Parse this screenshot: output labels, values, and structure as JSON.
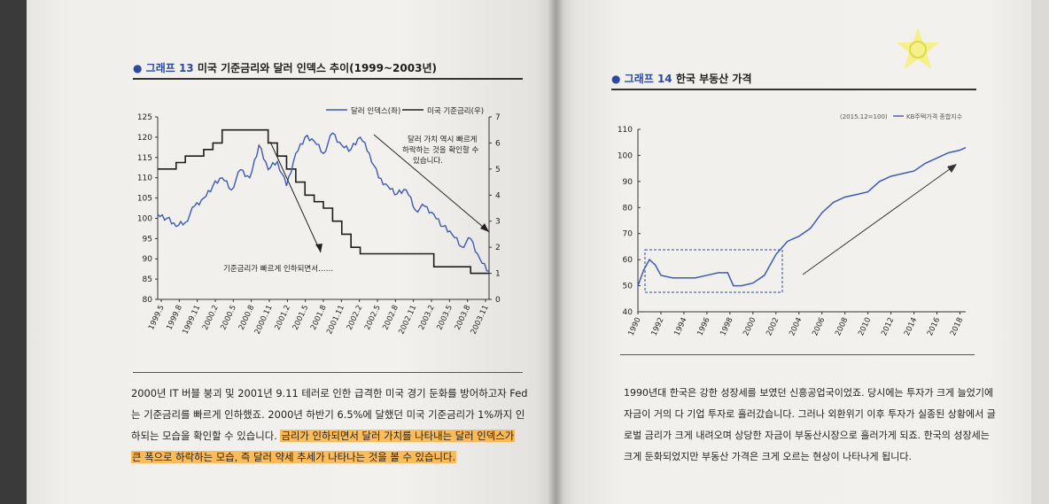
{
  "left": {
    "figure_label": "● 그래프 13",
    "figure_title": "미국 기준금리와 달러 인덱스 추이(1999~2003년)",
    "chart_data": {
      "type": "line",
      "legend": [
        "달러 인덱스(좌)",
        "미국 기준금리(우)"
      ],
      "legend_placement": "top-right",
      "x_ticks": [
        "1999.5",
        "1999.8",
        "1999.11",
        "2000.2",
        "2000.5",
        "2000.8",
        "2000.11",
        "2001.2",
        "2001.5",
        "2001.8",
        "2001.11",
        "2002.2",
        "2002.5",
        "2002.8",
        "2002.11",
        "2003.2",
        "2003.5",
        "2003.8",
        "2003.11"
      ],
      "y_left_ticks": [
        "80",
        "85",
        "90",
        "95",
        "100",
        "105",
        "110",
        "115",
        "120",
        "125"
      ],
      "y_left_range": [
        80,
        125
      ],
      "y_right_ticks": [
        "0",
        "1",
        "2",
        "3",
        "4",
        "5",
        "6",
        "7"
      ],
      "y_right_range": [
        0,
        7
      ],
      "series": [
        {
          "name": "달러 인덱스(좌)",
          "color": "#3b5bb5",
          "values": [
            101,
            100,
            98,
            99,
            103,
            105,
            108,
            110,
            107,
            112,
            110,
            118,
            112,
            114,
            108,
            116,
            120,
            119,
            116,
            121,
            118,
            117,
            120,
            116,
            110,
            108,
            106,
            107,
            102,
            103,
            101,
            98,
            96,
            93,
            95,
            90,
            87
          ]
        },
        {
          "name": "미국 기준금리(우)",
          "color": "#222222",
          "values": [
            5.0,
            5.0,
            5.25,
            5.5,
            5.5,
            5.75,
            6.0,
            6.5,
            6.5,
            6.5,
            6.5,
            6.5,
            6.0,
            5.5,
            5.0,
            4.5,
            4.0,
            3.75,
            3.5,
            3.0,
            2.5,
            2.0,
            1.75,
            1.75,
            1.75,
            1.75,
            1.75,
            1.75,
            1.75,
            1.75,
            1.25,
            1.25,
            1.25,
            1.25,
            1.0,
            1.0,
            1.0
          ]
        }
      ],
      "annotations": [
        "달러 가치 역시 빠르게",
        "하락하는 것을 확인할 수",
        "있습니다.",
        "기준금리가 빠르게 인하되면서……"
      ]
    },
    "paragraph_lines": [
      {
        "pre": "2000년 IT 버블 붕괴 및 2001년 9.11 테러로 인한 급격한 미국 경기 둔화를 방어하고자 Fed",
        "hl": ""
      },
      {
        "pre": "는 기준금리를 빠르게 인하했죠. 2000년 하반기 6.5%에 달했던 미국 기준금리가 1%까지 인",
        "hl": ""
      },
      {
        "pre": "하되는 모습을 확인할 수 있습니다. ",
        "hl": "금리가 인하되면서 달러 가치를 나타내는 달러 인덱스가"
      },
      {
        "pre": "",
        "hl": "큰 폭으로 하락하는 모습, 즉 달러 약세 추세가 나타나는 것을 볼 수 있습니다."
      }
    ]
  },
  "right": {
    "figure_label": "● 그래프 14",
    "figure_title": "한국 부동산 가격",
    "chart_data": {
      "type": "line",
      "legend": [
        "(2015.12=100)",
        "KB주택가격 종합지수"
      ],
      "legend_placement": "top-right",
      "x_ticks": [
        "1990",
        "1992",
        "1994",
        "1996",
        "1998",
        "2000",
        "2002",
        "2004",
        "2006",
        "2008",
        "2010",
        "2012",
        "2014",
        "2016",
        "2018"
      ],
      "y_ticks": [
        "40",
        "50",
        "60",
        "70",
        "80",
        "90",
        "100",
        "110"
      ],
      "y_range": [
        40,
        110
      ],
      "series": [
        {
          "name": "KB주택가격 종합지수",
          "color": "#3b5bb5",
          "x": [
            1990,
            1990.5,
            1991,
            1991.5,
            1992,
            1993,
            1994,
            1995,
            1996,
            1997,
            1997.8,
            1998.3,
            1999,
            2000,
            2001,
            2002,
            2003,
            2004,
            2005,
            2006,
            2007,
            2008,
            2009,
            2010,
            2011,
            2012,
            2013,
            2014,
            2015,
            2016,
            2017,
            2018,
            2018.5
          ],
          "values": [
            50,
            56,
            60,
            58,
            54,
            53,
            53,
            53,
            54,
            55,
            55,
            50,
            50,
            51,
            54,
            62,
            67,
            69,
            72,
            78,
            82,
            84,
            85,
            86,
            90,
            92,
            93,
            94,
            97,
            99,
            101,
            102,
            103
          ]
        }
      ]
    },
    "paragraph_lines": [
      "1990년대 한국은 강한 성장세를 보였던 신흥공업국이었죠. 당시에는 투자가 크게 늘었기에",
      "자금이 거의 다 기업 투자로 흘러갔습니다. 그러나 외환위기 이후 투자가 실종된 상황에서 글",
      "로벌 금리가 크게 내려오며 상당한 자금이 부동산시장으로 흘러가게 되죠. 한국의 성장세는",
      "크게 둔화되었지만 부동산 가격은 크게 오르는 현상이 나타나게 됩니다."
    ]
  }
}
